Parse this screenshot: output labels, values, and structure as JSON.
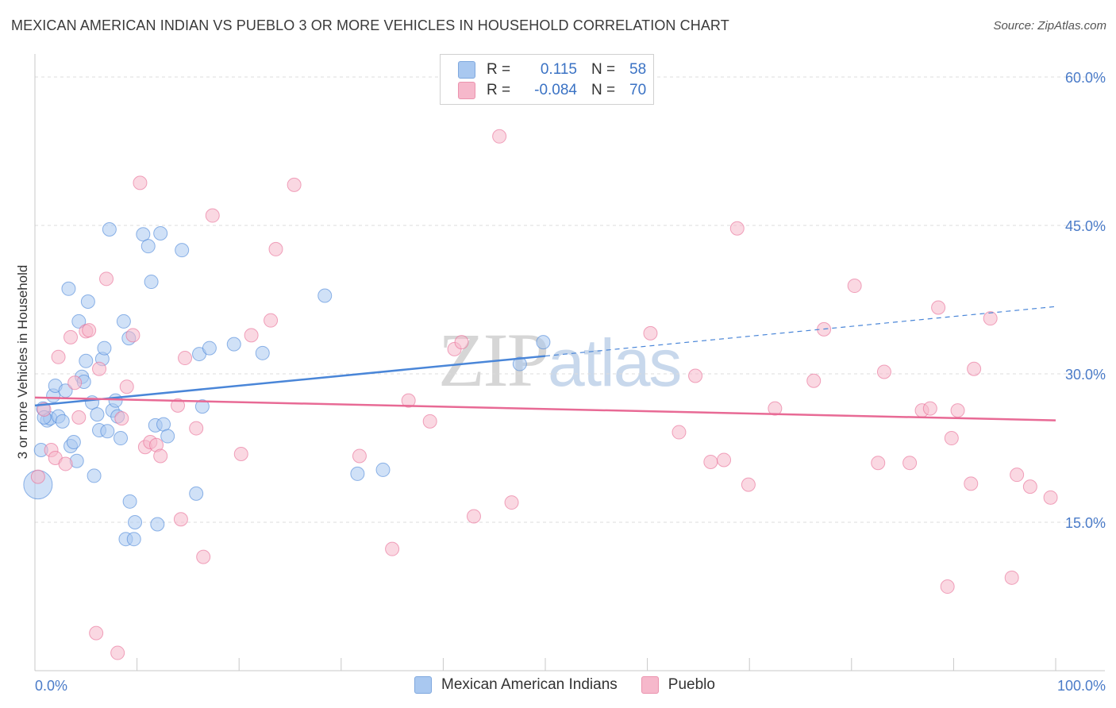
{
  "header": {
    "title": "MEXICAN AMERICAN INDIAN VS PUEBLO 3 OR MORE VEHICLES IN HOUSEHOLD CORRELATION CHART",
    "source": "Source: ZipAtlas.com"
  },
  "watermark": {
    "zip": "ZIP",
    "atlas": "atlas"
  },
  "legend": {
    "rows": [
      {
        "r_label": "R =",
        "r_value": "0.115",
        "n_label": "N =",
        "n_value": "58",
        "color": "#a9c8f0"
      },
      {
        "r_label": "R =",
        "r_value": "-0.084",
        "n_label": "N =",
        "n_value": "70",
        "color": "#f6b8cb"
      }
    ]
  },
  "bottom_legend": {
    "items": [
      {
        "label": "Mexican American Indians",
        "color": "#a9c8f0"
      },
      {
        "label": "Pueblo",
        "color": "#f6b8cb"
      }
    ]
  },
  "chart_data": {
    "type": "scatter",
    "title": "MEXICAN AMERICAN INDIAN VS PUEBLO 3 OR MORE VEHICLES IN HOUSEHOLD CORRELATION CHART",
    "xlabel": "",
    "ylabel": "3 or more Vehicles in Household",
    "xlim": [
      0,
      100
    ],
    "ylim": [
      0,
      60
    ],
    "x_tick_labels": [
      "0.0%",
      "100.0%"
    ],
    "y_ticks": [
      15,
      30,
      45,
      60
    ],
    "y_tick_labels": [
      "15.0%",
      "30.0%",
      "45.0%",
      "60.0%"
    ],
    "grid": true,
    "series": [
      {
        "name": "Mexican American Indians",
        "color": "#4a86d8",
        "fill": "#a9c8f0",
        "trend": {
          "x0": 0,
          "y0": 26.8,
          "x1": 50,
          "y1": 31.8,
          "dash_to_x": 100,
          "dash_to_y": 36.8
        },
        "points": [
          [
            0.3,
            18.8
          ],
          [
            0.6,
            22.3
          ],
          [
            0.8,
            26.5
          ],
          [
            1.2,
            25.3
          ],
          [
            1.5,
            25.5
          ],
          [
            1.8,
            27.8
          ],
          [
            2.0,
            28.8
          ],
          [
            2.3,
            25.7
          ],
          [
            2.7,
            25.2
          ],
          [
            3.0,
            28.3
          ],
          [
            3.3,
            38.6
          ],
          [
            3.5,
            22.7
          ],
          [
            3.8,
            23.1
          ],
          [
            4.1,
            21.2
          ],
          [
            4.3,
            35.3
          ],
          [
            4.6,
            29.7
          ],
          [
            4.8,
            29.2
          ],
          [
            5.0,
            31.3
          ],
          [
            5.2,
            37.3
          ],
          [
            5.6,
            27.1
          ],
          [
            5.8,
            19.7
          ],
          [
            6.1,
            25.9
          ],
          [
            6.3,
            24.3
          ],
          [
            6.6,
            31.5
          ],
          [
            6.8,
            32.6
          ],
          [
            7.1,
            24.2
          ],
          [
            7.3,
            44.6
          ],
          [
            7.6,
            26.3
          ],
          [
            7.9,
            27.3
          ],
          [
            8.1,
            25.7
          ],
          [
            8.4,
            23.5
          ],
          [
            8.7,
            35.3
          ],
          [
            8.9,
            13.3
          ],
          [
            9.2,
            33.6
          ],
          [
            9.3,
            17.1
          ],
          [
            9.7,
            13.3
          ],
          [
            9.8,
            15.0
          ],
          [
            10.6,
            44.1
          ],
          [
            11.1,
            42.9
          ],
          [
            11.4,
            39.3
          ],
          [
            11.8,
            24.8
          ],
          [
            12.0,
            14.8
          ],
          [
            12.3,
            44.2
          ],
          [
            12.6,
            24.9
          ],
          [
            13.0,
            23.7
          ],
          [
            14.4,
            42.5
          ],
          [
            15.8,
            17.9
          ],
          [
            16.1,
            32.0
          ],
          [
            16.4,
            26.7
          ],
          [
            17.1,
            32.6
          ],
          [
            19.5,
            33.0
          ],
          [
            22.3,
            32.1
          ],
          [
            28.4,
            37.9
          ],
          [
            31.6,
            19.9
          ],
          [
            34.1,
            20.3
          ],
          [
            49.8,
            33.2
          ],
          [
            47.5,
            31.0
          ],
          [
            0.9,
            25.6
          ]
        ]
      },
      {
        "name": "Pueblo",
        "color": "#e86a95",
        "fill": "#f6b8cb",
        "trend": {
          "x0": 0,
          "y0": 27.6,
          "x1": 100,
          "y1": 25.3
        },
        "points": [
          [
            0.3,
            19.6
          ],
          [
            0.9,
            26.4
          ],
          [
            1.6,
            22.3
          ],
          [
            2.0,
            21.5
          ],
          [
            2.3,
            31.7
          ],
          [
            3.0,
            20.9
          ],
          [
            3.5,
            33.7
          ],
          [
            3.9,
            29.1
          ],
          [
            4.3,
            25.6
          ],
          [
            5.0,
            34.3
          ],
          [
            5.3,
            34.4
          ],
          [
            6.0,
            3.8
          ],
          [
            6.3,
            30.5
          ],
          [
            7.0,
            39.6
          ],
          [
            8.1,
            1.8
          ],
          [
            8.5,
            25.5
          ],
          [
            9.0,
            28.7
          ],
          [
            9.6,
            33.9
          ],
          [
            10.3,
            49.3
          ],
          [
            10.8,
            22.6
          ],
          [
            11.3,
            23.1
          ],
          [
            11.9,
            22.8
          ],
          [
            12.3,
            21.7
          ],
          [
            14.0,
            26.8
          ],
          [
            14.3,
            15.3
          ],
          [
            14.7,
            31.6
          ],
          [
            15.8,
            24.5
          ],
          [
            16.5,
            11.5
          ],
          [
            17.4,
            46.0
          ],
          [
            20.2,
            21.9
          ],
          [
            21.2,
            33.9
          ],
          [
            23.1,
            35.4
          ],
          [
            23.6,
            42.6
          ],
          [
            25.4,
            49.1
          ],
          [
            31.8,
            21.7
          ],
          [
            35.0,
            12.3
          ],
          [
            36.6,
            27.3
          ],
          [
            38.7,
            25.2
          ],
          [
            41.1,
            32.5
          ],
          [
            41.8,
            33.2
          ],
          [
            43.0,
            15.6
          ],
          [
            45.5,
            54.0
          ],
          [
            46.7,
            17.0
          ],
          [
            60.3,
            34.1
          ],
          [
            63.1,
            24.1
          ],
          [
            64.7,
            29.8
          ],
          [
            66.2,
            21.1
          ],
          [
            67.5,
            21.3
          ],
          [
            68.8,
            44.7
          ],
          [
            69.9,
            18.8
          ],
          [
            72.5,
            26.5
          ],
          [
            76.3,
            29.3
          ],
          [
            77.3,
            34.5
          ],
          [
            80.3,
            38.9
          ],
          [
            82.6,
            21.0
          ],
          [
            83.2,
            30.2
          ],
          [
            85.7,
            21.0
          ],
          [
            86.9,
            26.3
          ],
          [
            87.7,
            26.5
          ],
          [
            88.5,
            36.7
          ],
          [
            89.4,
            8.5
          ],
          [
            89.8,
            23.5
          ],
          [
            90.4,
            26.3
          ],
          [
            91.7,
            18.9
          ],
          [
            92.0,
            30.5
          ],
          [
            93.6,
            35.6
          ],
          [
            95.7,
            9.4
          ],
          [
            96.2,
            19.8
          ],
          [
            97.5,
            18.6
          ],
          [
            99.5,
            17.5
          ]
        ]
      }
    ]
  }
}
